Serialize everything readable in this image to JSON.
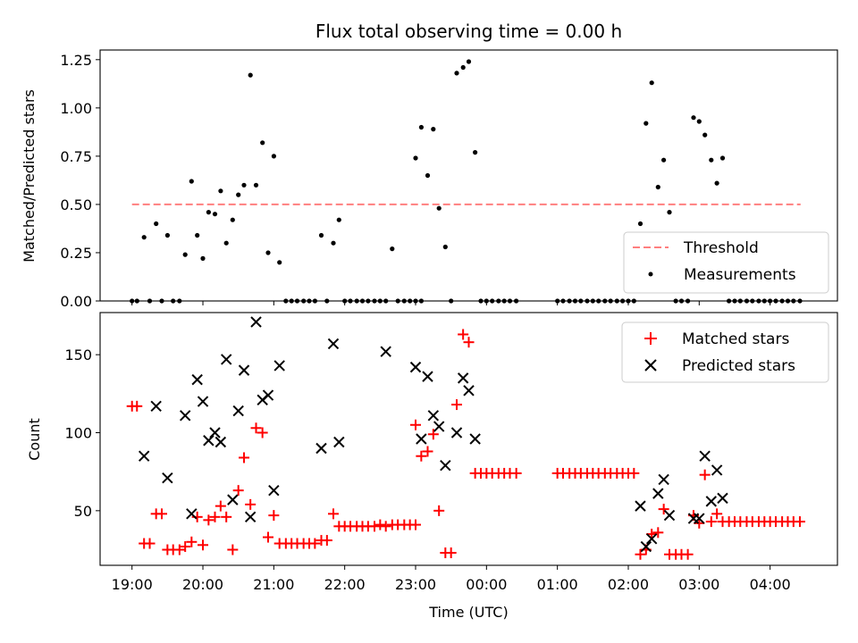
{
  "figure": {
    "title": "Flux total observing time = 0.00 h"
  },
  "chart_data": [
    {
      "type": "scatter",
      "name": "ratio-panel",
      "ylabel": "Matched/Predicted stars",
      "xlabel": "",
      "ylim": [
        0,
        1.3
      ],
      "yticks": [
        0.0,
        0.25,
        0.5,
        0.75,
        1.0,
        1.25
      ],
      "ytick_labels": [
        "0.00",
        "0.25",
        "0.50",
        "0.75",
        "1.00",
        "1.25"
      ],
      "x_unit": "hours since 19:00",
      "threshold": {
        "name": "Threshold",
        "value": 0.5,
        "x_range": [
          0.0,
          9.43
        ],
        "color": "#ff7f7f"
      },
      "legend": {
        "placement": "lower-right",
        "entries": [
          "Threshold",
          "Measurements"
        ]
      },
      "series": [
        {
          "name": "Measurements",
          "color": "#000000",
          "points": [
            [
              0.0,
              0.0
            ],
            [
              0.07,
              0.0
            ],
            [
              0.17,
              0.33
            ],
            [
              0.25,
              0.0
            ],
            [
              0.34,
              0.4
            ],
            [
              0.42,
              0.0
            ],
            [
              0.5,
              0.34
            ],
            [
              0.58,
              0.0
            ],
            [
              0.67,
              0.0
            ],
            [
              0.75,
              0.24
            ],
            [
              0.84,
              0.62
            ],
            [
              0.92,
              0.34
            ],
            [
              1.0,
              0.22
            ],
            [
              1.08,
              0.46
            ],
            [
              1.17,
              0.45
            ],
            [
              1.25,
              0.57
            ],
            [
              1.33,
              0.3
            ],
            [
              1.42,
              0.42
            ],
            [
              1.5,
              0.55
            ],
            [
              1.58,
              0.6
            ],
            [
              1.67,
              1.17
            ],
            [
              1.75,
              0.6
            ],
            [
              1.84,
              0.82
            ],
            [
              1.92,
              0.25
            ],
            [
              2.0,
              0.75
            ],
            [
              2.08,
              0.2
            ],
            [
              2.17,
              0.0
            ],
            [
              2.25,
              0.0
            ],
            [
              2.33,
              0.0
            ],
            [
              2.42,
              0.0
            ],
            [
              2.5,
              0.0
            ],
            [
              2.58,
              0.0
            ],
            [
              2.67,
              0.34
            ],
            [
              2.75,
              0.0
            ],
            [
              2.84,
              0.3
            ],
            [
              2.92,
              0.42
            ],
            [
              3.0,
              0.0
            ],
            [
              3.08,
              0.0
            ],
            [
              3.17,
              0.0
            ],
            [
              3.25,
              0.0
            ],
            [
              3.33,
              0.0
            ],
            [
              3.42,
              0.0
            ],
            [
              3.5,
              0.0
            ],
            [
              3.58,
              0.0
            ],
            [
              3.67,
              0.27
            ],
            [
              3.75,
              0.0
            ],
            [
              3.84,
              0.0
            ],
            [
              3.92,
              0.0
            ],
            [
              4.0,
              0.0
            ],
            [
              4.08,
              0.0
            ],
            [
              4.0,
              0.74
            ],
            [
              4.08,
              0.9
            ],
            [
              4.17,
              0.65
            ],
            [
              4.25,
              0.89
            ],
            [
              4.33,
              0.48
            ],
            [
              4.42,
              0.28
            ],
            [
              4.5,
              0.0
            ],
            [
              4.58,
              1.18
            ],
            [
              4.67,
              1.21
            ],
            [
              4.75,
              1.24
            ],
            [
              4.84,
              0.77
            ],
            [
              4.92,
              0.0
            ],
            [
              5.0,
              0.0
            ],
            [
              5.08,
              0.0
            ],
            [
              5.17,
              0.0
            ],
            [
              5.25,
              0.0
            ],
            [
              5.33,
              0.0
            ],
            [
              5.42,
              0.0
            ],
            [
              6.0,
              0.0
            ],
            [
              6.08,
              0.0
            ],
            [
              6.17,
              0.0
            ],
            [
              6.25,
              0.0
            ],
            [
              6.33,
              0.0
            ],
            [
              6.42,
              0.0
            ],
            [
              6.5,
              0.0
            ],
            [
              6.58,
              0.0
            ],
            [
              6.67,
              0.0
            ],
            [
              6.75,
              0.0
            ],
            [
              6.84,
              0.0
            ],
            [
              6.92,
              0.0
            ],
            [
              7.0,
              0.0
            ],
            [
              7.08,
              0.0
            ],
            [
              7.17,
              0.4
            ],
            [
              7.25,
              0.92
            ],
            [
              7.33,
              1.13
            ],
            [
              7.42,
              0.59
            ],
            [
              7.5,
              0.73
            ],
            [
              7.58,
              0.46
            ],
            [
              7.67,
              0.0
            ],
            [
              7.75,
              0.0
            ],
            [
              7.84,
              0.0
            ],
            [
              7.92,
              0.95
            ],
            [
              8.0,
              0.93
            ],
            [
              8.08,
              0.86
            ],
            [
              8.17,
              0.73
            ],
            [
              8.25,
              0.61
            ],
            [
              8.33,
              0.74
            ],
            [
              8.42,
              0.0
            ],
            [
              8.5,
              0.0
            ],
            [
              8.58,
              0.0
            ],
            [
              8.67,
              0.0
            ],
            [
              8.75,
              0.0
            ],
            [
              8.84,
              0.0
            ],
            [
              8.92,
              0.0
            ],
            [
              9.0,
              0.0
            ],
            [
              9.08,
              0.0
            ],
            [
              9.17,
              0.0
            ],
            [
              9.25,
              0.0
            ],
            [
              9.33,
              0.0
            ],
            [
              9.42,
              0.0
            ]
          ]
        }
      ]
    },
    {
      "type": "scatter",
      "name": "count-panel",
      "xlabel": "Time (UTC)",
      "ylabel": "Count",
      "ylim": [
        15,
        177
      ],
      "yticks": [
        50,
        100,
        150
      ],
      "ytick_labels": [
        "50",
        "100",
        "150"
      ],
      "x_unit": "hours since 19:00",
      "xlim": [
        -0.45,
        9.95
      ],
      "xticks": [
        0,
        1,
        2,
        3,
        4,
        5,
        6,
        7,
        8,
        9
      ],
      "xtick_labels": [
        "19:00",
        "20:00",
        "21:00",
        "22:00",
        "23:00",
        "00:00",
        "01:00",
        "02:00",
        "03:00",
        "04:00"
      ],
      "legend": {
        "placement": "upper-right",
        "entries": [
          "Matched stars",
          "Predicted stars"
        ]
      },
      "series": [
        {
          "name": "Matched stars",
          "marker": "plus",
          "color": "#ff0000",
          "points": [
            [
              0.0,
              117
            ],
            [
              0.07,
              117
            ],
            [
              0.17,
              29
            ],
            [
              0.25,
              29
            ],
            [
              0.34,
              48
            ],
            [
              0.42,
              48
            ],
            [
              0.5,
              25
            ],
            [
              0.58,
              25
            ],
            [
              0.67,
              25
            ],
            [
              0.75,
              27
            ],
            [
              0.84,
              30
            ],
            [
              0.92,
              46
            ],
            [
              1.0,
              28
            ],
            [
              1.08,
              44
            ],
            [
              1.17,
              46
            ],
            [
              1.25,
              53
            ],
            [
              1.33,
              46
            ],
            [
              1.42,
              25
            ],
            [
              1.5,
              63
            ],
            [
              1.58,
              84
            ],
            [
              1.67,
              54
            ],
            [
              1.75,
              103
            ],
            [
              1.84,
              100
            ],
            [
              1.92,
              33
            ],
            [
              2.0,
              47
            ],
            [
              2.08,
              29
            ],
            [
              2.17,
              29
            ],
            [
              2.25,
              29
            ],
            [
              2.33,
              29
            ],
            [
              2.42,
              29
            ],
            [
              2.5,
              29
            ],
            [
              2.58,
              29
            ],
            [
              2.67,
              31
            ],
            [
              2.75,
              31
            ],
            [
              2.84,
              48
            ],
            [
              2.92,
              40
            ],
            [
              3.0,
              40
            ],
            [
              3.08,
              40
            ],
            [
              3.17,
              40
            ],
            [
              3.25,
              40
            ],
            [
              3.33,
              40
            ],
            [
              3.42,
              40
            ],
            [
              3.5,
              41
            ],
            [
              3.58,
              40
            ],
            [
              3.67,
              41
            ],
            [
              3.75,
              41
            ],
            [
              3.84,
              41
            ],
            [
              3.92,
              41
            ],
            [
              4.0,
              41
            ],
            [
              4.0,
              105
            ],
            [
              4.08,
              85
            ],
            [
              4.17,
              88
            ],
            [
              4.25,
              99
            ],
            [
              4.33,
              50
            ],
            [
              4.42,
              23
            ],
            [
              4.5,
              23
            ],
            [
              4.58,
              118
            ],
            [
              4.67,
              163
            ],
            [
              4.75,
              158
            ],
            [
              4.84,
              74
            ],
            [
              4.92,
              74
            ],
            [
              5.0,
              74
            ],
            [
              5.08,
              74
            ],
            [
              5.17,
              74
            ],
            [
              5.25,
              74
            ],
            [
              5.33,
              74
            ],
            [
              5.42,
              74
            ],
            [
              6.0,
              74
            ],
            [
              6.08,
              74
            ],
            [
              6.17,
              74
            ],
            [
              6.25,
              74
            ],
            [
              6.33,
              74
            ],
            [
              6.42,
              74
            ],
            [
              6.5,
              74
            ],
            [
              6.58,
              74
            ],
            [
              6.67,
              74
            ],
            [
              6.75,
              74
            ],
            [
              6.84,
              74
            ],
            [
              6.92,
              74
            ],
            [
              7.0,
              74
            ],
            [
              7.08,
              74
            ],
            [
              7.17,
              22
            ],
            [
              7.25,
              25
            ],
            [
              7.33,
              35
            ],
            [
              7.42,
              36
            ],
            [
              7.5,
              51
            ],
            [
              7.58,
              22
            ],
            [
              7.67,
              22
            ],
            [
              7.75,
              22
            ],
            [
              7.84,
              22
            ],
            [
              7.92,
              47
            ],
            [
              8.0,
              42
            ],
            [
              8.08,
              73
            ],
            [
              8.17,
              43
            ],
            [
              8.25,
              48
            ],
            [
              8.33,
              43
            ],
            [
              8.42,
              43
            ],
            [
              8.5,
              43
            ],
            [
              8.58,
              43
            ],
            [
              8.67,
              43
            ],
            [
              8.75,
              43
            ],
            [
              8.84,
              43
            ],
            [
              8.92,
              43
            ],
            [
              9.0,
              43
            ],
            [
              9.08,
              43
            ],
            [
              9.17,
              43
            ],
            [
              9.25,
              43
            ],
            [
              9.33,
              43
            ],
            [
              9.42,
              43
            ]
          ]
        },
        {
          "name": "Predicted stars",
          "marker": "x",
          "color": "#000000",
          "points": [
            [
              0.17,
              85
            ],
            [
              0.34,
              117
            ],
            [
              0.5,
              71
            ],
            [
              0.75,
              111
            ],
            [
              0.84,
              48
            ],
            [
              0.92,
              134
            ],
            [
              1.0,
              120
            ],
            [
              1.08,
              95
            ],
            [
              1.17,
              100
            ],
            [
              1.25,
              94
            ],
            [
              1.33,
              147
            ],
            [
              1.42,
              57
            ],
            [
              1.5,
              114
            ],
            [
              1.58,
              140
            ],
            [
              1.67,
              46
            ],
            [
              1.75,
              171
            ],
            [
              1.84,
              121
            ],
            [
              1.92,
              124
            ],
            [
              2.0,
              63
            ],
            [
              2.08,
              143
            ],
            [
              2.67,
              90
            ],
            [
              2.84,
              157
            ],
            [
              2.92,
              94
            ],
            [
              3.58,
              152
            ],
            [
              4.0,
              142
            ],
            [
              4.08,
              96
            ],
            [
              4.17,
              136
            ],
            [
              4.25,
              111
            ],
            [
              4.33,
              104
            ],
            [
              4.42,
              79
            ],
            [
              4.58,
              100
            ],
            [
              4.67,
              135
            ],
            [
              4.75,
              127
            ],
            [
              4.84,
              96
            ],
            [
              7.17,
              53
            ],
            [
              7.25,
              27
            ],
            [
              7.33,
              32
            ],
            [
              7.42,
              61
            ],
            [
              7.5,
              70
            ],
            [
              7.58,
              47
            ],
            [
              7.92,
              45
            ],
            [
              8.0,
              45
            ],
            [
              8.08,
              85
            ],
            [
              8.17,
              56
            ],
            [
              8.25,
              76
            ],
            [
              8.33,
              58
            ]
          ]
        }
      ]
    }
  ]
}
